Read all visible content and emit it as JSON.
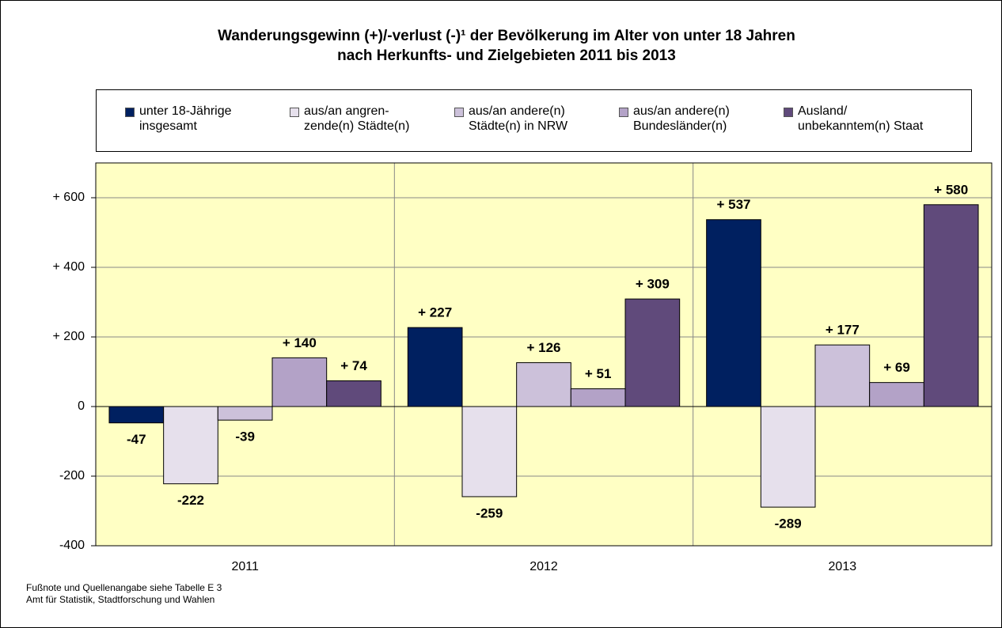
{
  "chart_data": {
    "type": "bar",
    "title": [
      "Wanderungsgewinn (+)/-verlust (-)¹ der Bevölkerung im Alter von unter 18 Jahren",
      "nach Herkunfts- und Zielgebieten 2011 bis 2013"
    ],
    "categories": [
      "2011",
      "2012",
      "2013"
    ],
    "series": [
      {
        "name": "unter 18-Jährige\ninsgesamt",
        "color": "#002060",
        "values": [
          -47,
          227,
          537
        ],
        "value_labels": [
          "-47",
          "+ 227",
          "+ 537"
        ]
      },
      {
        "name": "aus/an angren-\nzende(n) Städte(n)",
        "color": "#e6e0ec",
        "values": [
          -222,
          -259,
          -289
        ],
        "value_labels": [
          "-222",
          "-259",
          "-289"
        ]
      },
      {
        "name": "aus/an andere(n)\nStädte(n) in NRW",
        "color": "#ccc1da",
        "values": [
          -39,
          126,
          177
        ],
        "value_labels": [
          "-39",
          "+ 126",
          "+ 177"
        ]
      },
      {
        "name": "aus/an andere(n)\nBundesländer(n)",
        "color": "#b3a2c7",
        "values": [
          140,
          51,
          69
        ],
        "value_labels": [
          "+ 140",
          "+ 51",
          "+ 69"
        ]
      },
      {
        "name": "Ausland/\nunbekanntem(n) Staat",
        "color": "#604a7b",
        "values": [
          74,
          309,
          580
        ],
        "value_labels": [
          "+ 74",
          "+ 309",
          "+ 580"
        ]
      }
    ],
    "ylim": [
      -400,
      700
    ],
    "yticks": [
      -400,
      -200,
      0,
      {
        "value": 200,
        "label": "+ 200"
      },
      {
        "value": 400,
        "label": "+ 400"
      },
      {
        "value": 600,
        "label": "+ 600"
      }
    ],
    "grid": true,
    "legend": "top",
    "footnotes": [
      "Fußnote und Quellenangabe siehe Tabelle E 3",
      "Amt für Statistik, Stadtforschung und Wahlen"
    ]
  }
}
